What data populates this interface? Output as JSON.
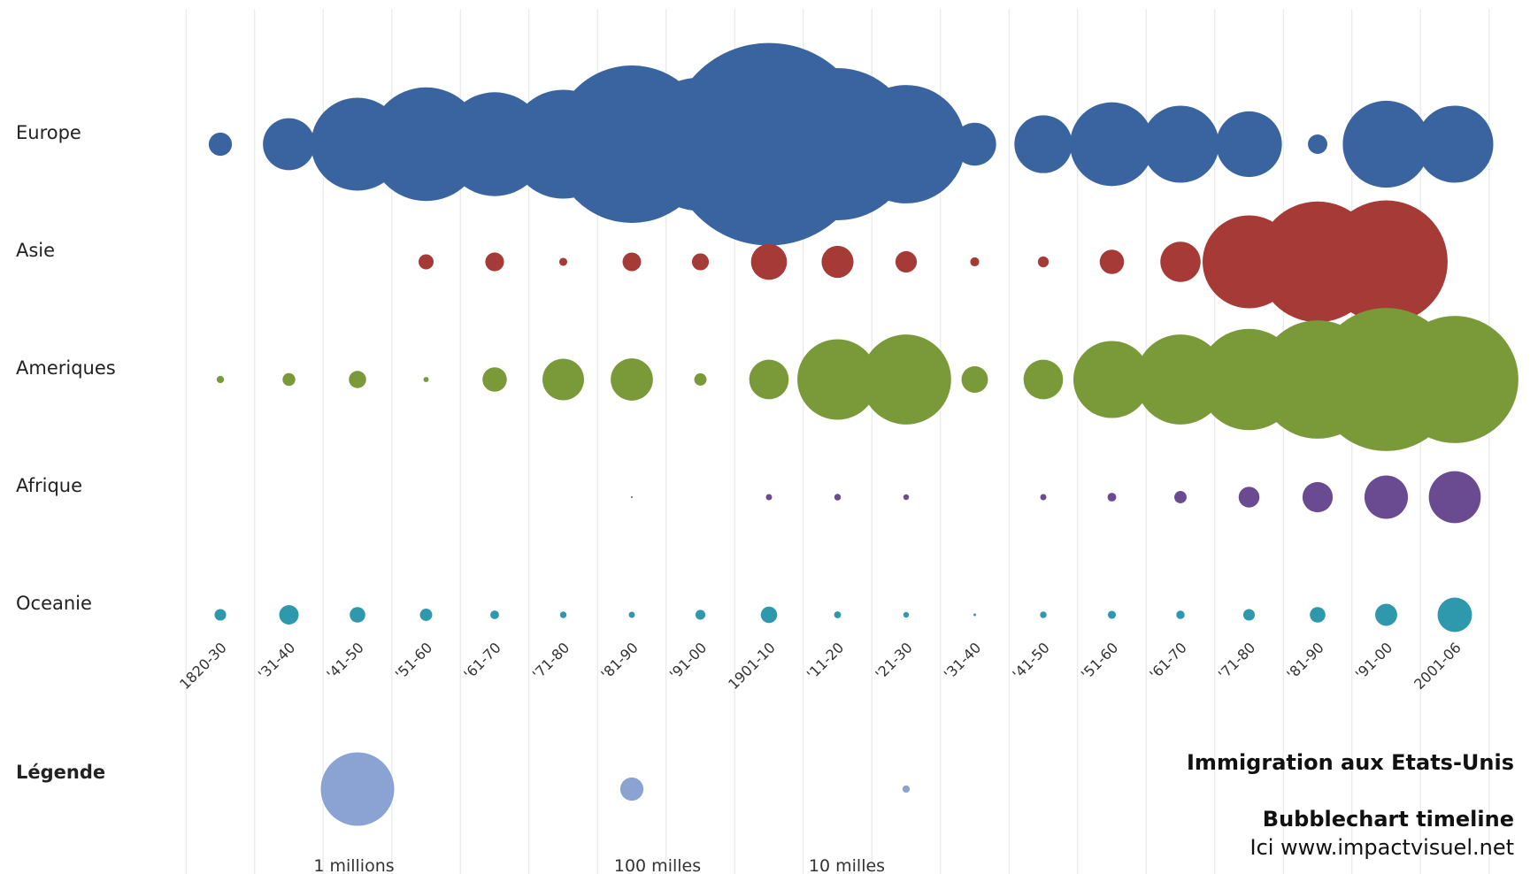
{
  "chart_data": {
    "type": "bubble",
    "title": "Immigration aux Etats-Unis",
    "subtitle": "Bubblechart timeline",
    "credit": "Ici www.impactvisuel.net",
    "periods": [
      "1820-30",
      "'31-40",
      "'41-50",
      "'51-60",
      "'61-70",
      "'71-80",
      "'81-90",
      "'91-00",
      "1901-10",
      "'11-20",
      "'21-30",
      "'31-40",
      "'41-50",
      "'51-60",
      "'61-70",
      "'71-80",
      "'81-90",
      "'91-00",
      "2001-06"
    ],
    "series": [
      {
        "name": "Europe",
        "color": "#3a64a0",
        "values": [
          100000,
          500000,
          1600000,
          2400000,
          2000000,
          2200000,
          4600000,
          3300000,
          7600000,
          4300000,
          2600000,
          340000,
          620000,
          1300000,
          1100000,
          800000,
          70000,
          1400000,
          1100000
        ]
      },
      {
        "name": "Asie",
        "color": "#a63a36",
        "values": [
          0,
          0,
          0,
          42000,
          65000,
          12000,
          64000,
          53000,
          240000,
          190000,
          85000,
          15000,
          22000,
          110000,
          300000,
          1600000,
          2700000,
          2800000,
          0
        ]
      },
      {
        "name": "Ameriques",
        "color": "#7a9a3a",
        "values": [
          10000,
          30000,
          55000,
          5000,
          110000,
          320000,
          330000,
          28000,
          290000,
          1200000,
          1500000,
          130000,
          290000,
          1100000,
          1500000,
          1900000,
          2600000,
          3800000,
          3000000
        ]
      },
      {
        "name": "Afrique",
        "color": "#6a4a90",
        "values": [
          0,
          0,
          0,
          0,
          0,
          0,
          400,
          0,
          7000,
          8000,
          6000,
          0,
          7000,
          14000,
          28000,
          80000,
          170000,
          350000,
          500000
        ]
      },
      {
        "name": "Oceanie",
        "color": "#2e98ad",
        "values": [
          25000,
          70000,
          45000,
          28000,
          14000,
          8000,
          7000,
          18000,
          50000,
          9000,
          6000,
          1200,
          8000,
          12000,
          13000,
          25000,
          45000,
          90000,
          220000
        ]
      }
    ],
    "legend": {
      "title": "Légende",
      "items": [
        {
          "label": "1 millions",
          "value": 1000000
        },
        {
          "label": "100 milles",
          "value": 100000
        },
        {
          "label": "10 milles",
          "value": 10000
        }
      ],
      "color": "#8aa3d2"
    },
    "grid": true
  }
}
